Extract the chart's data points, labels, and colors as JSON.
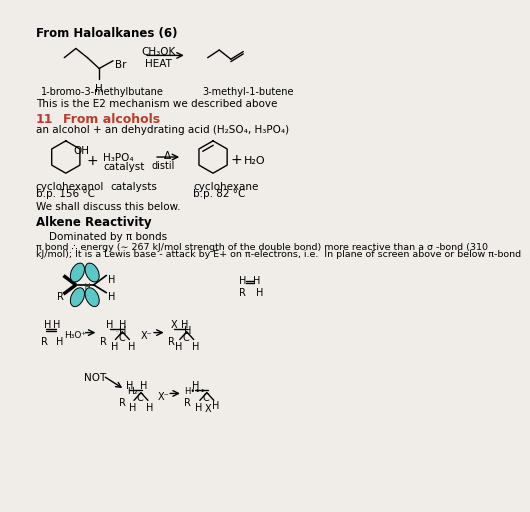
{
  "bg_color": "#f0ede8",
  "section1_title": "From Haloalkanes (6)",
  "section1_label1": "1-bromo-3-methylbutane",
  "section1_label2": "3-methyl-1-butene",
  "section1_reagent1": "CH₃OK",
  "section1_reagent2": "HEAT",
  "section1_text": "This is the E2 mechanism we described above",
  "section2_num": "11",
  "section2_title": "From alcohols",
  "section2_text": "an alcohol + an dehydrating acid (H₂SO₄, H₃PO₄)",
  "section2_label1": "cyclohexanol",
  "section2_label1b": "b.p. 156 °C",
  "section2_label2": "catalysts",
  "section2_label3": "cyclohexane",
  "section2_label3b": "b.p. 82 °C",
  "section2_reagent": "H₃PO₄",
  "section2_catalyst": "catalyst",
  "section2_delta": "Δ",
  "section2_distil": "distil",
  "section2_plus1": "+",
  "section2_h2o": "H₂O",
  "section2_text2": "We shall discuss this below.",
  "section3_title": "Alkene Reactivity",
  "section3_text1": "Dominated by π bonds",
  "section3_line1": "π bond ∴ energy (∼ 267 kJ/mol strength of the double bond) more reactive than a σ -bond (310",
  "section3_line2": "kJ/mol); It is a Lewis base - attack by E+ on π-electrons, i.e.  In plane of screen above or below π-bond",
  "red_color": "#c0392b",
  "black_color": "#000000",
  "teal_color": "#5bc8c8"
}
